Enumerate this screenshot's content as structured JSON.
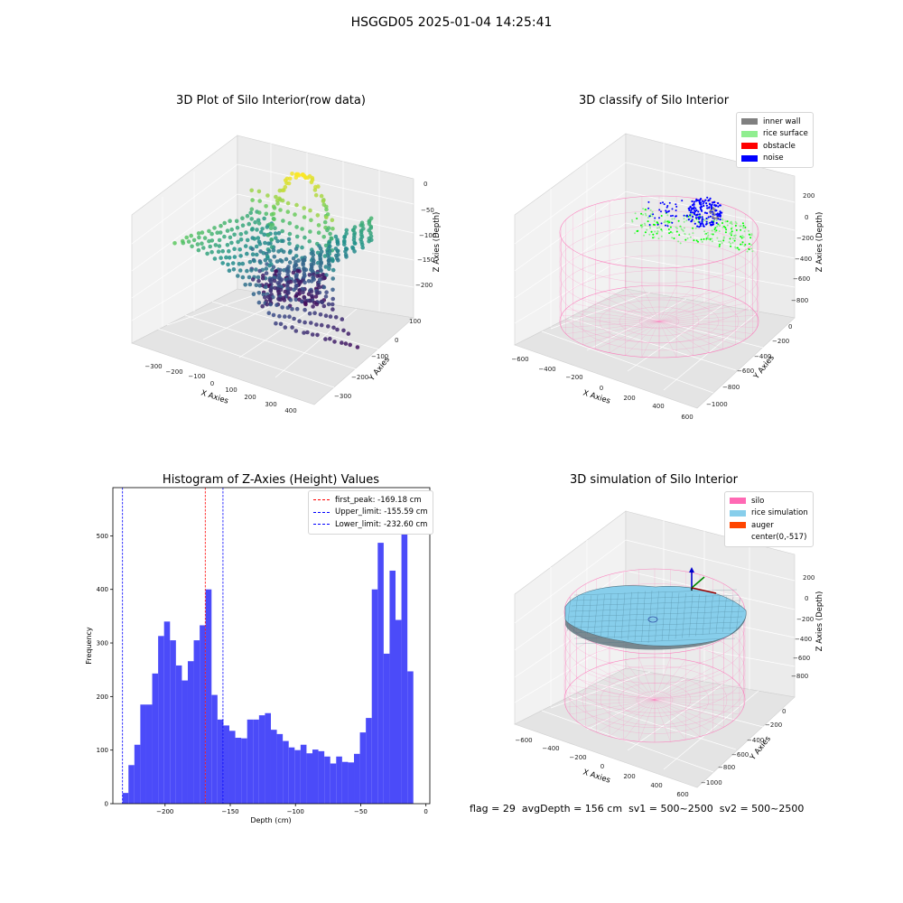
{
  "suptitle": "HSGGD05 2025-01-04 14:25:41",
  "panels": {
    "raw": {
      "title": "3D Plot of Silo Interior(row data)",
      "xlabel": "X Axies",
      "ylabel": "Y Axies",
      "zlabel": "Z Axies (Depth)",
      "xticks": [
        "−300",
        "−200",
        "−100",
        "0",
        "100",
        "200",
        "300",
        "400"
      ],
      "yticks": [
        "100",
        "0",
        "−100",
        "−200",
        "−300"
      ],
      "zticks": [
        "0",
        "−50",
        "−100",
        "−150",
        "−200"
      ]
    },
    "classify": {
      "title": "3D classify of Silo Interior",
      "xlabel": "X Axies",
      "ylabel": "Y Axies",
      "zlabel": "Z Axies (Depth)",
      "xticks": [
        "−600",
        "−400",
        "−200",
        "0",
        "200",
        "400",
        "600"
      ],
      "yticks": [
        "0",
        "−200",
        "−400",
        "−600",
        "−800",
        "−1000"
      ],
      "zticks": [
        "200",
        "0",
        "−200",
        "−400",
        "−600",
        "−800"
      ],
      "legend": [
        {
          "label": "inner wall",
          "color": "#808080"
        },
        {
          "label": "rice surface",
          "color": "#90ee90"
        },
        {
          "label": "obstacle",
          "color": "#ff0000"
        },
        {
          "label": "noise",
          "color": "#0000ff"
        }
      ]
    },
    "simulation": {
      "title": "3D simulation of Silo Interior",
      "xlabel": "X Axies",
      "ylabel": "Y Axies",
      "zlabel": "Z Axies (Depth)",
      "xticks": [
        "−600",
        "−400",
        "−200",
        "0",
        "200",
        "400",
        "600"
      ],
      "yticks": [
        "0",
        "−200",
        "−400",
        "−600",
        "−800",
        "−1000"
      ],
      "zticks": [
        "200",
        "0",
        "−200",
        "−400",
        "−600",
        "−800"
      ],
      "legend": [
        {
          "label": "silo",
          "color": "#ff69b4"
        },
        {
          "label": "rice simulation",
          "color": "#87ceeb"
        },
        {
          "label": "auger",
          "color": "#ff4500"
        },
        {
          "label": "center(0,-517)",
          "color": ""
        }
      ]
    }
  },
  "status": {
    "flag": "flag = 29",
    "avg": "avgDepth = 156 cm",
    "sv1": "sv1 = 500~2500",
    "sv2": "sv2 = 500~2500"
  },
  "chart_data": [
    {
      "type": "bar",
      "title": "Histogram of Z-Axies (Height) Values",
      "xlabel": "Depth (cm)",
      "ylabel": "Frequency",
      "xlim": [
        -240,
        3
      ],
      "ylim": [
        0,
        590
      ],
      "bin_start": -232.6,
      "bin_width": 4.55,
      "values": [
        20,
        72,
        110,
        185,
        185,
        243,
        313,
        340,
        305,
        258,
        230,
        266,
        305,
        333,
        400,
        203,
        157,
        146,
        136,
        123,
        122,
        157,
        157,
        165,
        169,
        138,
        130,
        117,
        105,
        100,
        110,
        94,
        101,
        98,
        88,
        75,
        88,
        78,
        77,
        93,
        133,
        160,
        400,
        487,
        280,
        435,
        343,
        558,
        247
      ],
      "xticks": [
        -200,
        -150,
        -100,
        -50,
        0
      ],
      "xtick_labels": [
        "−200",
        "−150",
        "−100",
        "−50",
        "0"
      ],
      "yticks": [
        0,
        100,
        200,
        300,
        400,
        500
      ],
      "bar_color": "#4b4bf9",
      "lines": [
        {
          "label": "first_peak: -169.18 cm",
          "x": -169.18,
          "color": "#ff0000"
        },
        {
          "label": "Upper_limit: -155.59 cm",
          "x": -155.59,
          "color": "#0000ff"
        },
        {
          "label": "Lower_limit: -232.60 cm",
          "x": -232.6,
          "color": "#0000ff"
        }
      ]
    }
  ]
}
